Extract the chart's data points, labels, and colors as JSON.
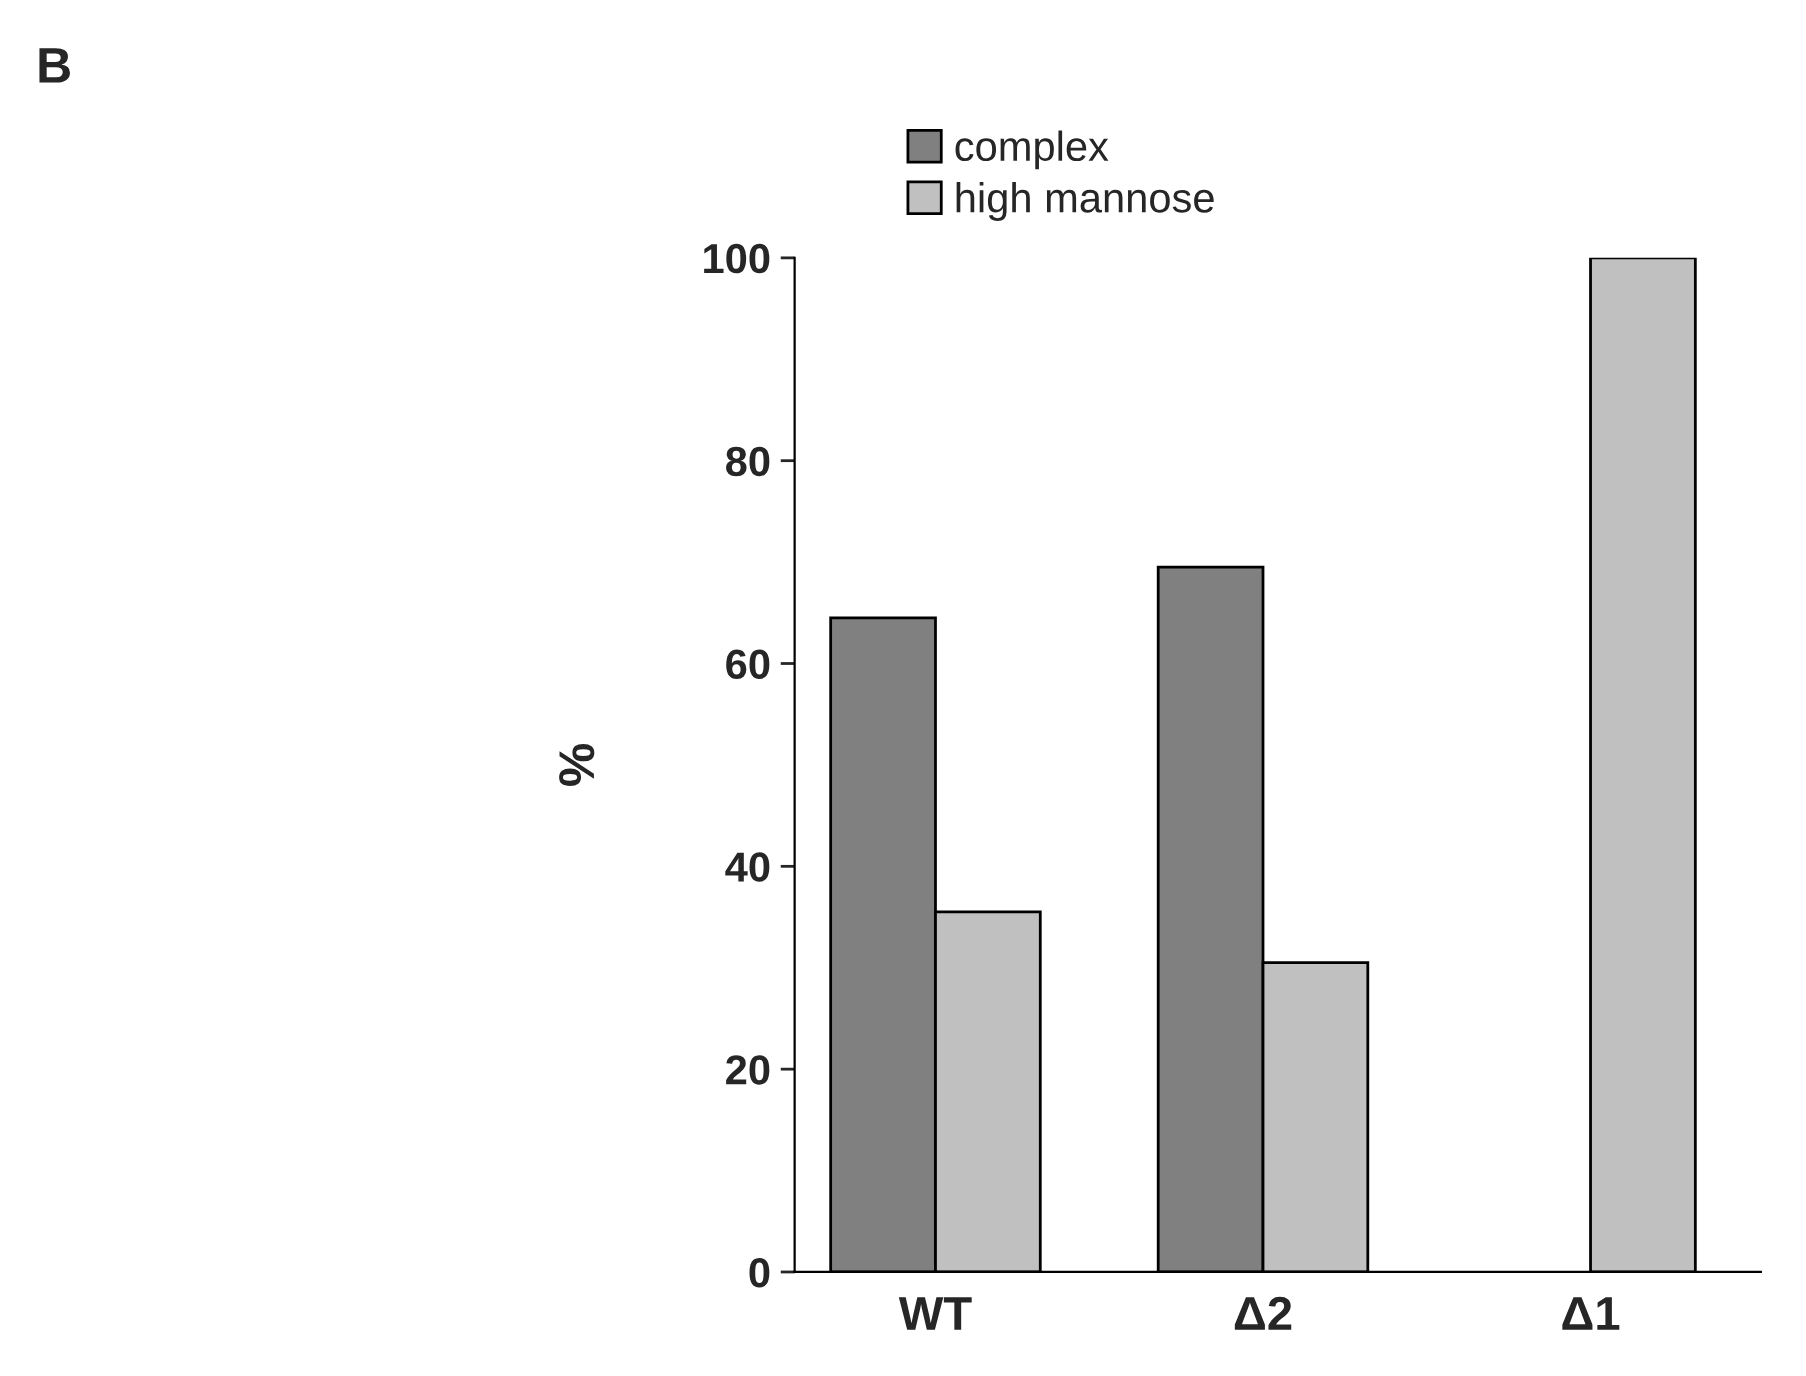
{
  "chart_data": {
    "type": "bar",
    "ylabel": "%",
    "categories": [
      "WT",
      "Δ2",
      "Δ1"
    ],
    "series": [
      {
        "name": "complex",
        "color": "#808080",
        "values": [
          64.5,
          69.5,
          null
        ]
      },
      {
        "name": "high mannose",
        "color": "#c0c0c0",
        "values": [
          35.5,
          30.5,
          100
        ]
      }
    ],
    "ylim": [
      0,
      100
    ],
    "yticks": [
      0,
      20,
      40,
      60,
      80,
      100
    ],
    "grid": false,
    "legend": "top",
    "annotations": [
      "B"
    ]
  }
}
